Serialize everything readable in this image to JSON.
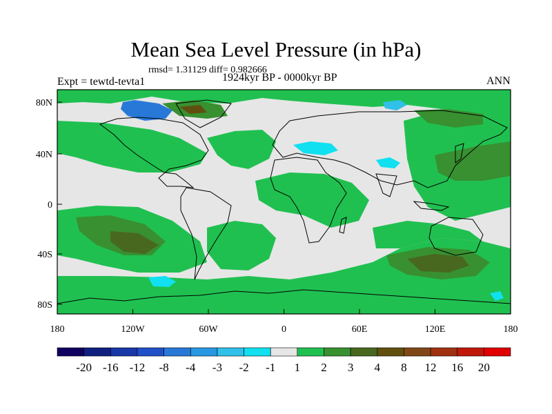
{
  "title": "Mean Sea Level Pressure (in hPa)",
  "stats": "rmsd= 1.31129 diff= 0.982666",
  "experiment": "Expt = tewtd-tevta1",
  "period": "1924kyr BP - 0000kyr BP",
  "season": "ANN",
  "x_ticks": [
    "180",
    "120W",
    "60W",
    "0",
    "60E",
    "120E",
    "180"
  ],
  "y_ticks": [
    "80N",
    "40N",
    "0",
    "40S",
    "80S"
  ],
  "colorbar": {
    "labels": [
      "-20",
      "-16",
      "-12",
      "-8",
      "-4",
      "-3",
      "-2",
      "-1",
      "1",
      "2",
      "3",
      "4",
      "8",
      "12",
      "16",
      "20"
    ],
    "colors": [
      "#100060",
      "#102080",
      "#1838a8",
      "#2050c8",
      "#2878d8",
      "#2898e0",
      "#30c0e8",
      "#10e0f0",
      "#e6e6e6",
      "#20c050",
      "#389030",
      "#486820",
      "#605010",
      "#804818",
      "#a03010",
      "#c01808",
      "#e00000"
    ]
  },
  "map_colors": {
    "neutral": "#e6e6e6",
    "green": "#20c050",
    "darkgreen": "#389030",
    "olive": "#486820",
    "brown": "#605010",
    "cyan": "#10e0f0",
    "lightblue": "#30c0e8",
    "blue": "#2878d8",
    "navy": "#1838a8"
  }
}
